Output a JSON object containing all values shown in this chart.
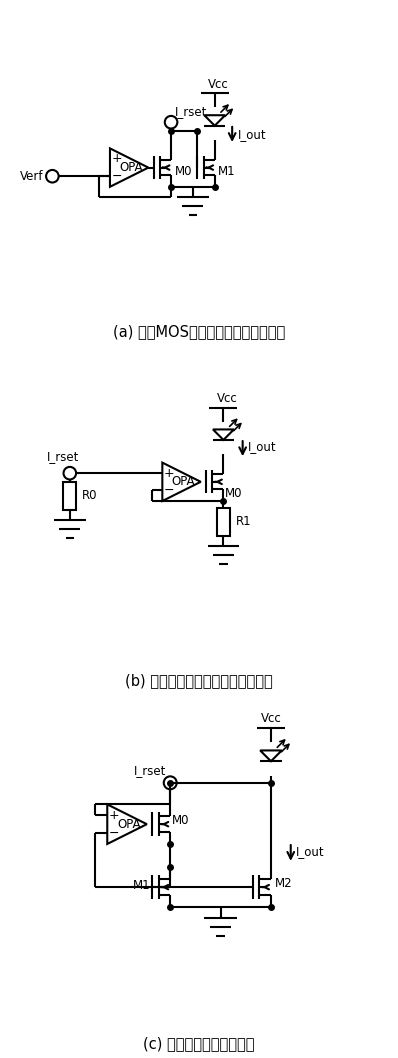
{
  "bg_color": "#ffffff",
  "line_color": "#000000",
  "lw": 1.5,
  "caption_a": "(a) 基于MOS管饱和区特性的恒流模块",
  "caption_b": "(b) 基于电流负反馈结构的恒流模块",
  "caption_c": "(c) 拟合工作区的恒流模块",
  "cap_fs": 10.5,
  "lbl_fs": 8.5,
  "figsize": [
    3.98,
    10.58
  ],
  "dpi": 100
}
